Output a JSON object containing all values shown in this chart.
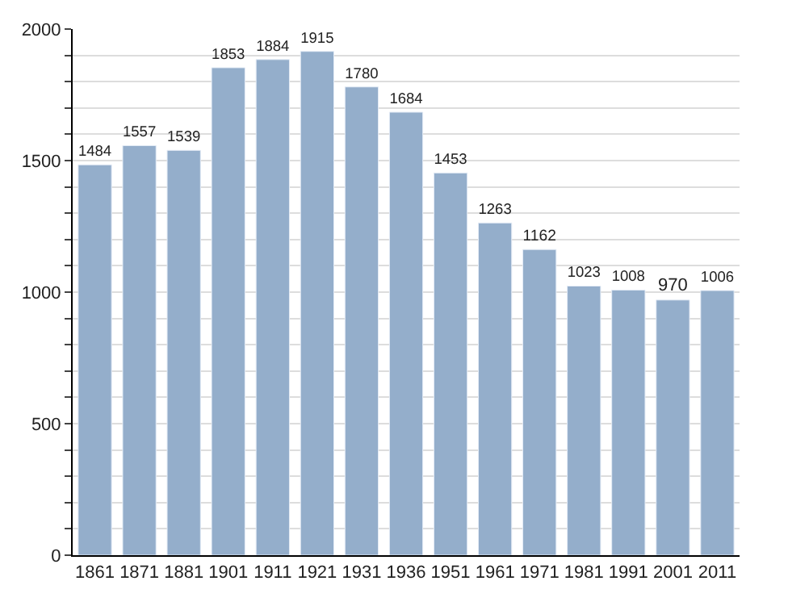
{
  "chart_data": {
    "type": "bar",
    "categories": [
      "1861",
      "1871",
      "1881",
      "1901",
      "1911",
      "1921",
      "1931",
      "1936",
      "1951",
      "1961",
      "1971",
      "1981",
      "1991",
      "2001",
      "2011"
    ],
    "values": [
      1484,
      1557,
      1539,
      1853,
      1884,
      1915,
      1780,
      1684,
      1453,
      1263,
      1162,
      1023,
      1008,
      970,
      1006
    ],
    "color": "#94aecb",
    "data_labels": true,
    "ylim": [
      0,
      2000
    ],
    "yticks": [
      0,
      {
        "value": 100,
        "label": null
      },
      {
        "value": 200,
        "label": null
      },
      {
        "value": 300,
        "label": null
      },
      {
        "value": 400,
        "label": null
      },
      500,
      {
        "value": 600,
        "label": null
      },
      {
        "value": 700,
        "label": null
      },
      {
        "value": 800,
        "label": null
      },
      {
        "value": 900,
        "label": null
      },
      1000,
      {
        "value": 1100,
        "label": null
      },
      {
        "value": 1200,
        "label": null
      },
      {
        "value": 1300,
        "label": null
      },
      {
        "value": 1400,
        "label": null
      },
      1500,
      {
        "value": 1600,
        "label": null
      },
      {
        "value": 1700,
        "label": null
      },
      {
        "value": 1800,
        "label": null
      },
      {
        "value": 1900,
        "label": null
      },
      2000
    ],
    "grid": "y"
  }
}
